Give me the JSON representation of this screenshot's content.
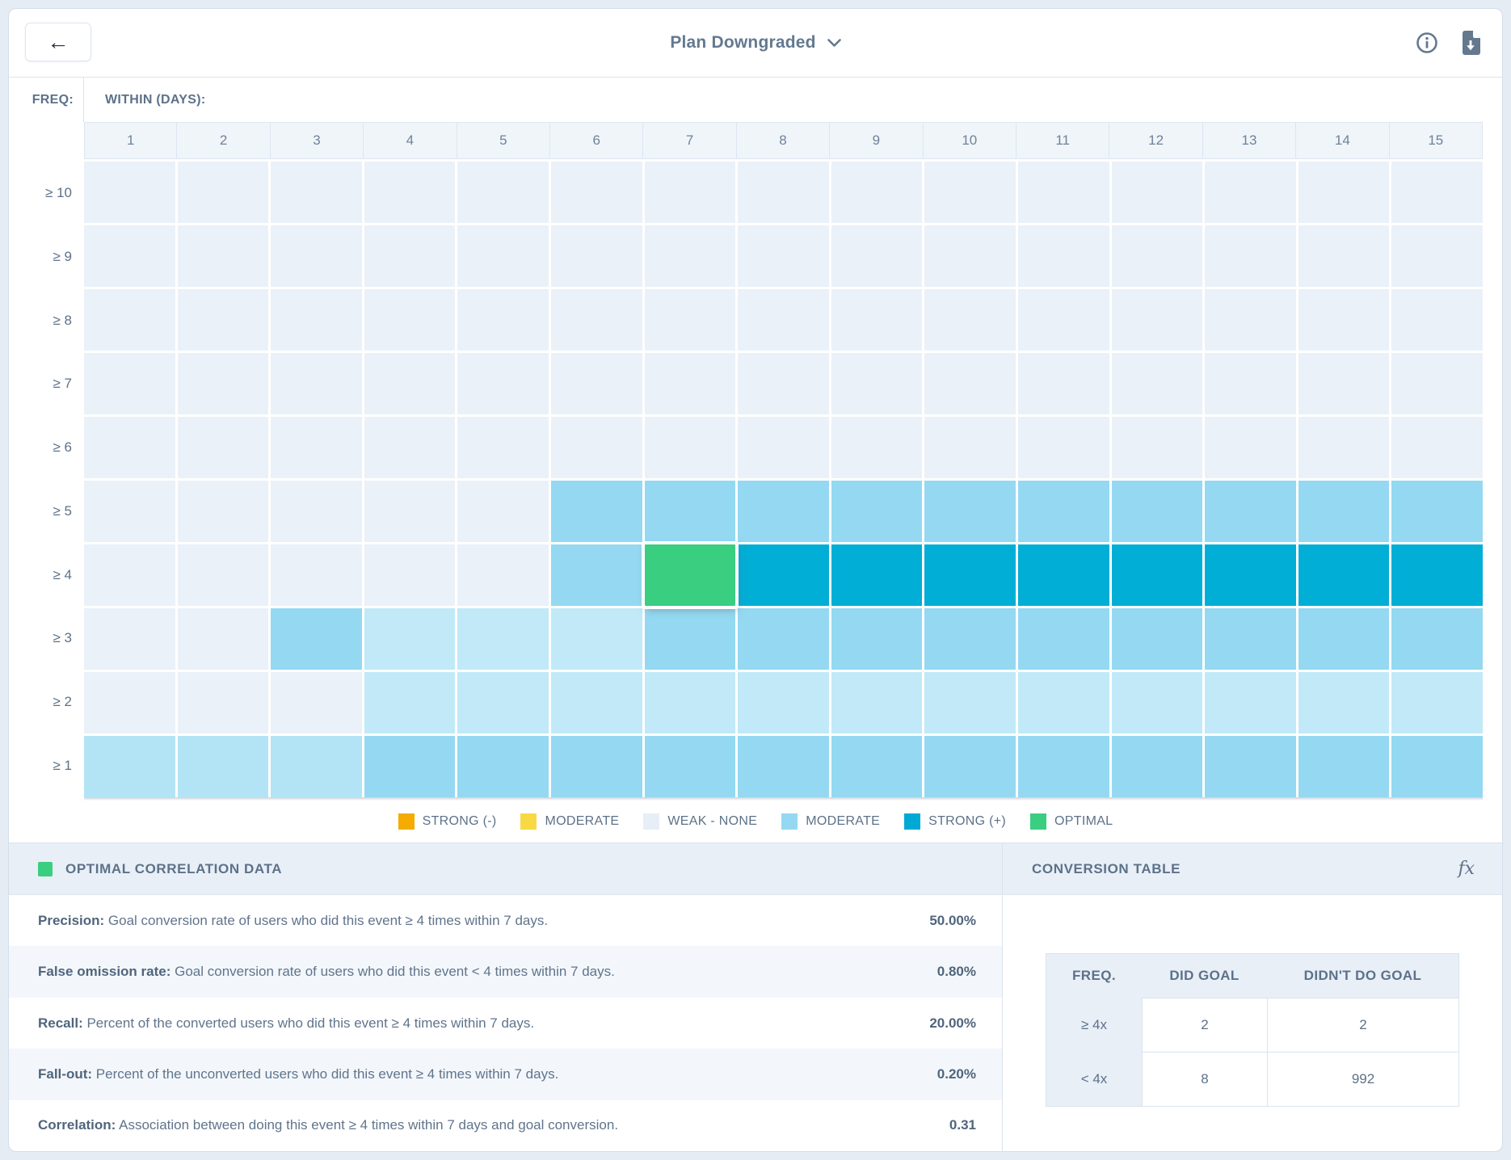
{
  "header": {
    "title": "Plan Downgraded"
  },
  "axis": {
    "freq_label": "FREQ:",
    "within_label": "WITHIN (DAYS):"
  },
  "chart_data": {
    "type": "heatmap",
    "x_title": "WITHIN (DAYS):",
    "y_title": "FREQ:",
    "x": [
      "1",
      "2",
      "3",
      "4",
      "5",
      "6",
      "7",
      "8",
      "9",
      "10",
      "11",
      "12",
      "13",
      "14",
      "15"
    ],
    "y": [
      "≥ 10",
      "≥ 9",
      "≥ 8",
      "≥ 7",
      "≥ 6",
      "≥ 5",
      "≥ 4",
      "≥ 3",
      "≥ 2",
      "≥ 1"
    ],
    "values": [
      [
        "weak",
        "weak",
        "weak",
        "weak",
        "weak",
        "weak",
        "weak",
        "weak",
        "weak",
        "weak",
        "weak",
        "weak",
        "weak",
        "weak",
        "weak"
      ],
      [
        "weak",
        "weak",
        "weak",
        "weak",
        "weak",
        "weak",
        "weak",
        "weak",
        "weak",
        "weak",
        "weak",
        "weak",
        "weak",
        "weak",
        "weak"
      ],
      [
        "weak",
        "weak",
        "weak",
        "weak",
        "weak",
        "weak",
        "weak",
        "weak",
        "weak",
        "weak",
        "weak",
        "weak",
        "weak",
        "weak",
        "weak"
      ],
      [
        "weak",
        "weak",
        "weak",
        "weak",
        "weak",
        "weak",
        "weak",
        "weak",
        "weak",
        "weak",
        "weak",
        "weak",
        "weak",
        "weak",
        "weak"
      ],
      [
        "weak",
        "weak",
        "weak",
        "weak",
        "weak",
        "weak",
        "weak",
        "weak",
        "weak",
        "weak",
        "weak",
        "weak",
        "weak",
        "weak",
        "weak"
      ],
      [
        "weak",
        "weak",
        "weak",
        "weak",
        "weak",
        "moderate",
        "moderate",
        "moderate",
        "moderate",
        "moderate",
        "moderate",
        "moderate",
        "moderate",
        "moderate",
        "moderate"
      ],
      [
        "weak",
        "weak",
        "weak",
        "weak",
        "weak",
        "moderate",
        "optimal",
        "strong",
        "strong",
        "strong",
        "strong",
        "strong",
        "strong",
        "strong",
        "strong"
      ],
      [
        "weak",
        "weak",
        "moderate",
        "light",
        "light",
        "light",
        "moderate",
        "moderate",
        "moderate",
        "moderate",
        "moderate",
        "moderate",
        "moderate",
        "moderate",
        "moderate"
      ],
      [
        "weak",
        "weak",
        "weak",
        "light",
        "light",
        "light",
        "light",
        "light",
        "light",
        "light",
        "light",
        "light",
        "light",
        "light",
        "light"
      ],
      [
        "light_deep",
        "light_deep",
        "light_deep",
        "moderate",
        "moderate",
        "moderate",
        "moderate",
        "moderate",
        "moderate",
        "moderate",
        "moderate",
        "moderate",
        "moderate",
        "moderate",
        "moderate"
      ]
    ],
    "level_colors": {
      "weak": "#eaf1f8",
      "light": "#c1e9f8",
      "light_deep": "#b3e4f5",
      "moderate": "#94d9f1",
      "strong": "#00aed6",
      "optimal": "#3ace80"
    },
    "selected_cell": {
      "freq": "≥ 4",
      "day": "7",
      "level": "optimal"
    }
  },
  "legend": {
    "items": [
      {
        "label": "STRONG (-)",
        "color": "#f5ab00",
        "pattern": "solid"
      },
      {
        "label": "MODERATE",
        "color": "#f8d943",
        "pattern": "solid"
      },
      {
        "label": "WEAK - NONE",
        "color": "#e8eef6",
        "pattern": "solid"
      },
      {
        "label": "MODERATE",
        "color": "#94d9f1",
        "pattern": "dots"
      },
      {
        "label": "STRONG (+)",
        "color": "#00a9d3",
        "pattern": "solid"
      },
      {
        "label": "OPTIMAL",
        "color": "#3ace80",
        "pattern": "solid"
      }
    ]
  },
  "optimal_panel": {
    "title": "OPTIMAL CORRELATION DATA",
    "swatch_color": "#3ace80",
    "metrics": [
      {
        "label": "Precision:",
        "description": "Goal conversion rate of users who did this event ≥ 4 times within 7 days.",
        "value": "50.00%"
      },
      {
        "label": "False omission rate:",
        "description": "Goal conversion rate of users who did this event < 4 times within 7 days.",
        "value": "0.80%"
      },
      {
        "label": "Recall:",
        "description": "Percent of the converted users who did this event ≥ 4 times within 7 days.",
        "value": "20.00%"
      },
      {
        "label": "Fall-out:",
        "description": "Percent of the unconverted users who did this event ≥ 4 times within 7 days.",
        "value": "0.20%"
      },
      {
        "label": "Correlation:",
        "description": "Association between doing this event ≥ 4 times within 7 days and goal conversion.",
        "value": "0.31"
      }
    ]
  },
  "conversion_panel": {
    "title": "CONVERSION TABLE",
    "fx_label": "fx",
    "headers": [
      "FREQ.",
      "DID GOAL",
      "DIDN'T DO GOAL"
    ],
    "rows": [
      [
        "≥ 4x",
        "2",
        "2"
      ],
      [
        "< 4x",
        "8",
        "992"
      ]
    ]
  }
}
